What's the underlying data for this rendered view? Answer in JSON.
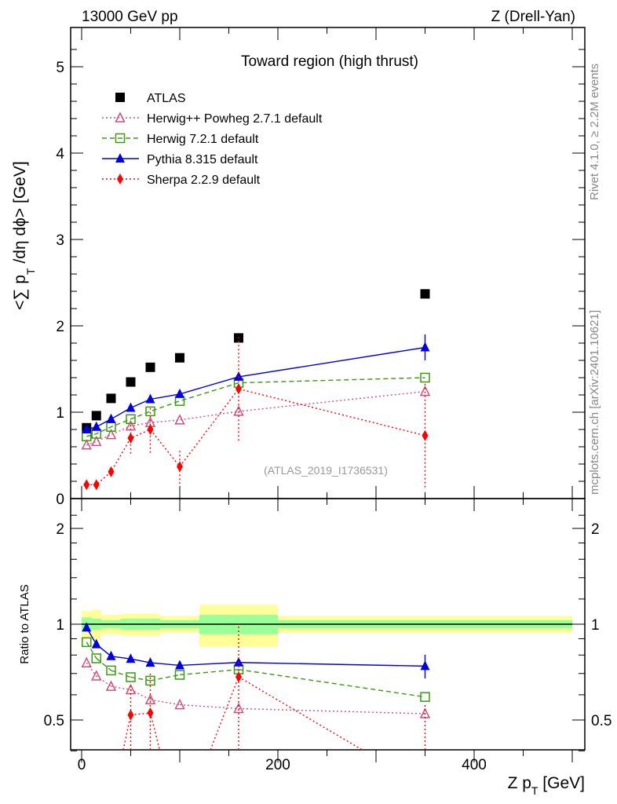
{
  "header": {
    "left": "13000 GeV pp",
    "right": "Z (Drell-Yan)"
  },
  "side": {
    "rivet": "Rivet 4.1.0, ≥ 2.2M events",
    "mcplots": "mcplots.cern.ch [arXiv:2401.10621]"
  },
  "chart_data": [
    {
      "type": "scatter",
      "title": "Toward region (high thrust)",
      "watermark": "(ATLAS_2019_I1736531)",
      "ylabel": "<∑ p_T /dη dϕ> [GeV]",
      "ylabel_parts": [
        "<∑ p",
        "T",
        " /dη dϕ> [GeV]"
      ],
      "xlim": [
        -15,
        510
      ],
      "ylim": [
        0,
        5.45
      ],
      "yticks": [
        0,
        1,
        2,
        3,
        4,
        5
      ],
      "x": [
        5,
        15,
        30,
        50,
        70,
        100,
        160,
        350
      ],
      "bin_edges": [
        0,
        10,
        20,
        40,
        60,
        80,
        120,
        200,
        500
      ],
      "series": [
        {
          "name": "ATLAS",
          "color": "#000000",
          "marker": "square",
          "line": "none",
          "values": [
            0.82,
            0.96,
            1.16,
            1.35,
            1.52,
            1.63,
            1.86,
            2.37
          ],
          "errors": [
            0.01,
            0.01,
            0.01,
            0.02,
            0.02,
            0.02,
            0.03,
            0.05
          ]
        },
        {
          "name": "Herwig++ Powheg 2.7.1 default",
          "color": "#d0507a",
          "marker": "open-triangle",
          "line": "dotted",
          "values": [
            0.62,
            0.66,
            0.74,
            0.84,
            0.88,
            0.91,
            1.01,
            1.24
          ],
          "errors": [
            0.01,
            0.01,
            0.01,
            0.01,
            0.02,
            0.02,
            0.03,
            0.05
          ]
        },
        {
          "name": "Herwig 7.2.1 default",
          "color": "#3a9a10",
          "marker": "open-square",
          "line": "dashed",
          "values": [
            0.72,
            0.75,
            0.83,
            0.92,
            1.01,
            1.13,
            1.34,
            1.4
          ],
          "errors": [
            0.01,
            0.01,
            0.01,
            0.01,
            0.02,
            0.02,
            0.03,
            0.04
          ]
        },
        {
          "name": "Pythia 8.315 default",
          "color": "#0000e0",
          "marker": "triangle",
          "line": "solid",
          "values": [
            0.8,
            0.83,
            0.92,
            1.05,
            1.15,
            1.21,
            1.41,
            1.75
          ],
          "errors": [
            0.01,
            0.01,
            0.01,
            0.01,
            0.02,
            0.02,
            0.04,
            0.15
          ]
        },
        {
          "name": "Sherpa 2.2.9 default",
          "color": "#ff0000",
          "marker": "diamond",
          "line": "dotted",
          "values": [
            0.16,
            0.16,
            0.31,
            0.7,
            0.8,
            0.37,
            1.27,
            0.73
          ],
          "errors": [
            0.03,
            0.04,
            0.05,
            0.18,
            0.27,
            0.2,
            0.6,
            0.6
          ]
        }
      ]
    },
    {
      "type": "scatter",
      "ylabel": "Ratio to ATLAS",
      "xlabel": "Z p_T [GeV]",
      "xlabel_parts": [
        "Z p",
        "T",
        " [GeV]"
      ],
      "yscale": "log",
      "ylim": [
        0.38,
        2.3
      ],
      "yticks": [
        0.5,
        1,
        2
      ],
      "xticks": [
        0,
        200,
        400
      ],
      "band_green": [
        0.05,
        0.04,
        0.03,
        0.04,
        0.04,
        0.03,
        0.07,
        0.03,
        0.03
      ],
      "band_yellow": [
        0.1,
        0.11,
        0.07,
        0.08,
        0.08,
        0.06,
        0.15,
        0.06,
        0.06
      ]
    }
  ]
}
